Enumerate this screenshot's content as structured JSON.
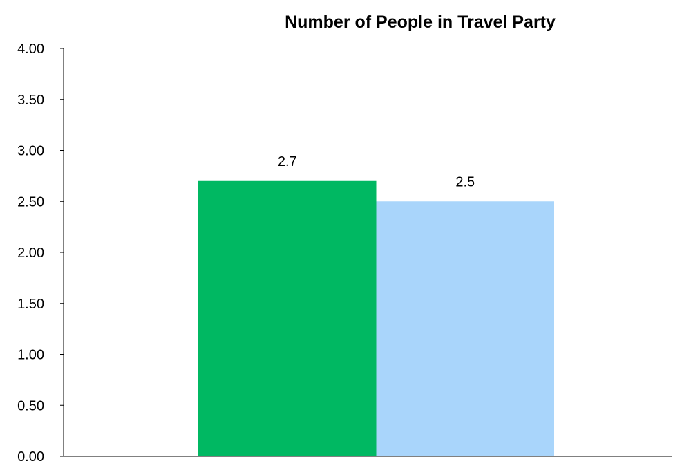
{
  "chart_data": {
    "type": "bar",
    "title": "Number of People in Travel Party",
    "xlabel": "",
    "ylabel": "",
    "categories": [
      "",
      ""
    ],
    "values": [
      2.7,
      2.5
    ],
    "data_labels": [
      "2.7",
      "2.5"
    ],
    "colors": [
      "#00b862",
      "#a9d5fb"
    ],
    "ylim": [
      0,
      4
    ],
    "yticks": [
      0,
      0.5,
      1,
      1.5,
      2,
      2.5,
      3,
      3.5,
      4
    ],
    "ytick_labels": [
      "0.00",
      "0.50",
      "1.00",
      "1.50",
      "2.00",
      "2.50",
      "3.00",
      "3.50",
      "4.00"
    ],
    "grid": false,
    "legend": "none"
  }
}
